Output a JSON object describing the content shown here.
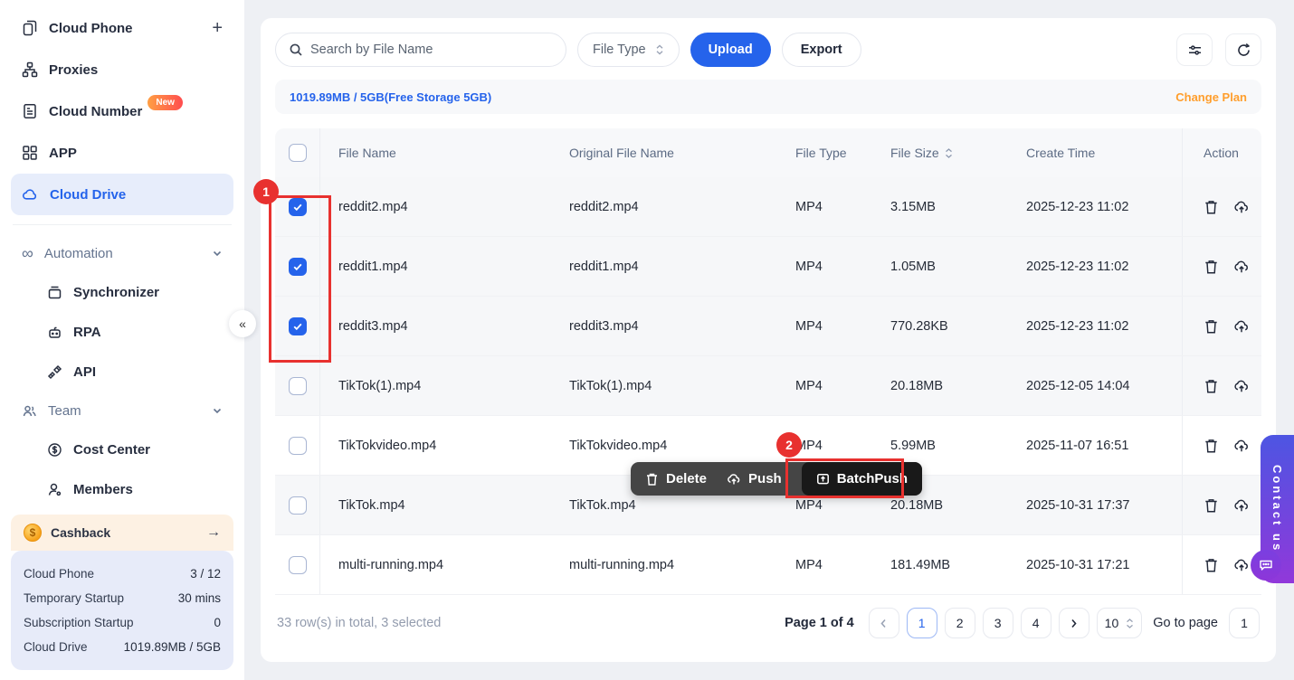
{
  "sidebar": {
    "cloud_phone": {
      "label": "Cloud Phone",
      "add": "+"
    },
    "proxies": {
      "label": "Proxies"
    },
    "cloud_number": {
      "label": "Cloud Number",
      "badge": "New"
    },
    "app": {
      "label": "APP"
    },
    "cloud_drive": {
      "label": "Cloud Drive"
    },
    "automation": {
      "label": "Automation",
      "children": {
        "synchronizer": "Synchronizer",
        "rpa": "RPA",
        "api": "API"
      }
    },
    "team": {
      "label": "Team",
      "children": {
        "cost_center": "Cost Center",
        "members": "Members"
      }
    },
    "cashback": {
      "label": "Cashback",
      "arrow": "→"
    },
    "collapse": "«",
    "stats": [
      {
        "label": "Cloud Phone",
        "value": "3 / 12"
      },
      {
        "label": "Temporary Startup",
        "value": "30 mins"
      },
      {
        "label": "Subscription Startup",
        "value": "0"
      },
      {
        "label": "Cloud Drive",
        "value": "1019.89MB / 5GB"
      }
    ]
  },
  "toolbar": {
    "search_placeholder": "Search by File Name",
    "file_type_label": "File Type",
    "upload_label": "Upload",
    "export_label": "Export"
  },
  "storage": {
    "usage": "1019.89MB / 5GB(Free Storage 5GB)",
    "change_plan": "Change Plan"
  },
  "table": {
    "columns": {
      "file_name": "File Name",
      "original_file_name": "Original File Name",
      "file_type": "File Type",
      "file_size": "File Size",
      "create_time": "Create Time",
      "action": "Action"
    },
    "rows": [
      {
        "file_name": "reddit2.mp4",
        "original": "reddit2.mp4",
        "type": "MP4",
        "size": "3.15MB",
        "created": "2025-12-23 11:02",
        "checked": true
      },
      {
        "file_name": "reddit1.mp4",
        "original": "reddit1.mp4",
        "type": "MP4",
        "size": "1.05MB",
        "created": "2025-12-23 11:02",
        "checked": true
      },
      {
        "file_name": "reddit3.mp4",
        "original": "reddit3.mp4",
        "type": "MP4",
        "size": "770.28KB",
        "created": "2025-12-23 11:02",
        "checked": true
      },
      {
        "file_name": "TikTok(1).mp4",
        "original": "TikTok(1).mp4",
        "type": "MP4",
        "size": "20.18MB",
        "created": "2025-12-05 14:04",
        "checked": false
      },
      {
        "file_name": "TikTokvideo.mp4",
        "original": "TikTokvideo.mp4",
        "type": "MP4",
        "size": "5.99MB",
        "created": "2025-11-07 16:51",
        "checked": false
      },
      {
        "file_name": "TikTok.mp4",
        "original": "TikTok.mp4",
        "type": "MP4",
        "size": "20.18MB",
        "created": "2025-10-31 17:37",
        "checked": false
      },
      {
        "file_name": "multi-running.mp4",
        "original": "multi-running.mp4",
        "type": "MP4",
        "size": "181.49MB",
        "created": "2025-10-31 17:21",
        "checked": false
      }
    ]
  },
  "row_menu": {
    "delete": "Delete",
    "push": "Push",
    "batch_push": "BatchPush"
  },
  "pagination": {
    "summary": "33 row(s) in total, 3 selected",
    "page_label": "Page 1 of 4",
    "pages": [
      "1",
      "2",
      "3",
      "4"
    ],
    "current_page": "1",
    "page_size": "10",
    "goto_label": "Go to page",
    "goto_value": "1"
  },
  "annotations": {
    "step1": "1",
    "step2": "2"
  },
  "contact": {
    "label": "Contact us"
  },
  "colors": {
    "accent_blue": "#2563eb",
    "annotation_red": "#e8312f",
    "change_plan_orange": "#ff9e2c",
    "badge_gradient": "#ff9f43-#ff4d4f",
    "contact_gradient": "#4d55e2-#9138da"
  }
}
